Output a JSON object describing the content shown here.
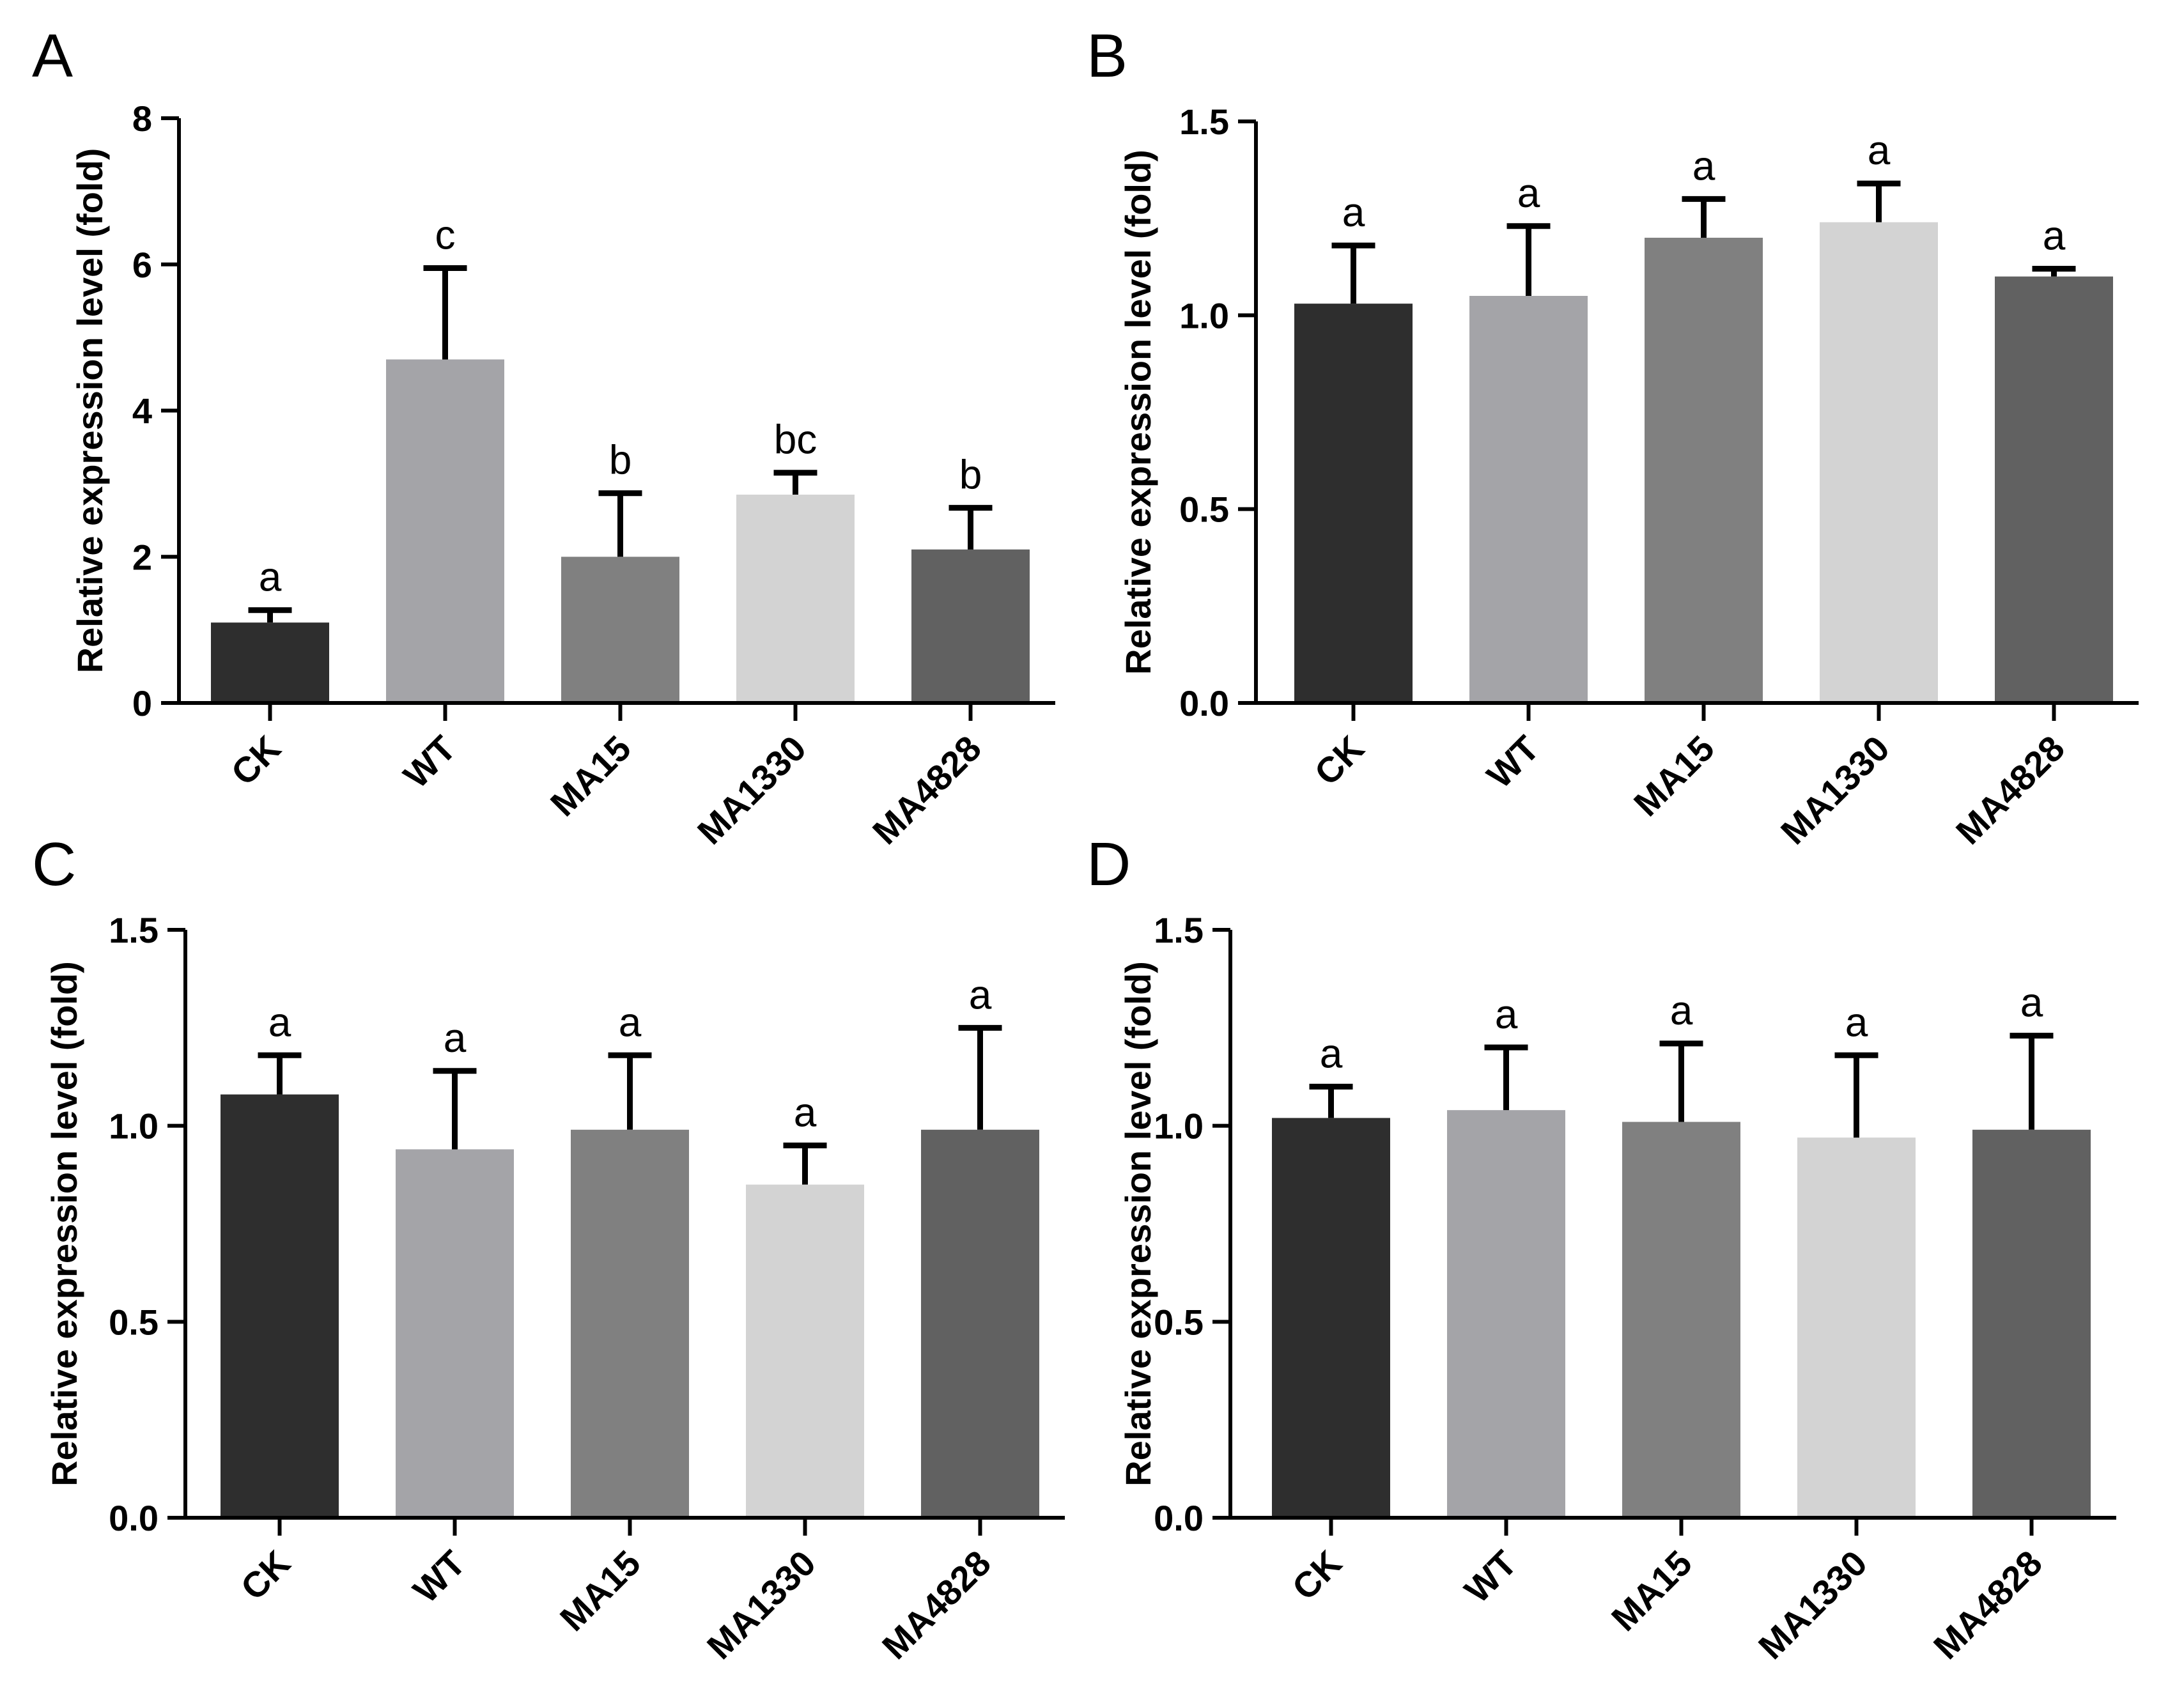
{
  "chart_data": [
    {
      "panel": "A",
      "type": "bar",
      "ylabel": "Relative expression level (fold)",
      "ylim": [
        0,
        8
      ],
      "yticks": [
        "0",
        "2",
        "4",
        "6",
        "8"
      ],
      "categories": [
        "CK",
        "WT",
        "MA15",
        "MA1330",
        "MA4828"
      ],
      "values": [
        1.1,
        4.7,
        2.0,
        2.85,
        2.1
      ],
      "errors": [
        0.17,
        1.25,
        0.87,
        0.3,
        0.57
      ],
      "significance": [
        "a",
        "c",
        "b",
        "bc",
        "b"
      ],
      "colors": [
        "#2e2e2e",
        "#a4a4a8",
        "#808080",
        "#d3d3d3",
        "#616161"
      ]
    },
    {
      "panel": "B",
      "type": "bar",
      "ylabel": "Relative expression level (fold)",
      "ylim": [
        0,
        1.5
      ],
      "yticks": [
        "0.0",
        "0.5",
        "1.0",
        "1.5"
      ],
      "categories": [
        "CK",
        "WT",
        "MA15",
        "MA1330",
        "MA4828"
      ],
      "values": [
        1.03,
        1.05,
        1.2,
        1.24,
        1.1
      ],
      "errors": [
        0.15,
        0.18,
        0.1,
        0.1,
        0.02
      ],
      "significance": [
        "a",
        "a",
        "a",
        "a",
        "a"
      ],
      "colors": [
        "#2e2e2e",
        "#a4a4a8",
        "#808080",
        "#d3d3d3",
        "#616161"
      ]
    },
    {
      "panel": "C",
      "type": "bar",
      "ylabel": "Relative expression level (fold)",
      "ylim": [
        0,
        1.5
      ],
      "yticks": [
        "0.0",
        "0.5",
        "1.0",
        "1.5"
      ],
      "categories": [
        "CK",
        "WT",
        "MA15",
        "MA1330",
        "MA4828"
      ],
      "values": [
        1.08,
        0.94,
        0.99,
        0.85,
        0.99
      ],
      "errors": [
        0.1,
        0.2,
        0.19,
        0.1,
        0.26
      ],
      "significance": [
        "a",
        "a",
        "a",
        "a",
        "a"
      ],
      "colors": [
        "#2e2e2e",
        "#a4a4a8",
        "#808080",
        "#d3d3d3",
        "#616161"
      ]
    },
    {
      "panel": "D",
      "type": "bar",
      "ylabel": "Relative expression level (fold)",
      "ylim": [
        0,
        1.5
      ],
      "yticks": [
        "0.0",
        "0.5",
        "1.0",
        "1.5"
      ],
      "categories": [
        "CK",
        "WT",
        "MA15",
        "MA1330",
        "MA4828"
      ],
      "values": [
        1.02,
        1.04,
        1.01,
        0.97,
        0.99
      ],
      "errors": [
        0.08,
        0.16,
        0.2,
        0.21,
        0.24
      ],
      "significance": [
        "a",
        "a",
        "a",
        "a",
        "a"
      ],
      "colors": [
        "#2e2e2e",
        "#a4a4a8",
        "#808080",
        "#d3d3d3",
        "#616161"
      ]
    }
  ]
}
